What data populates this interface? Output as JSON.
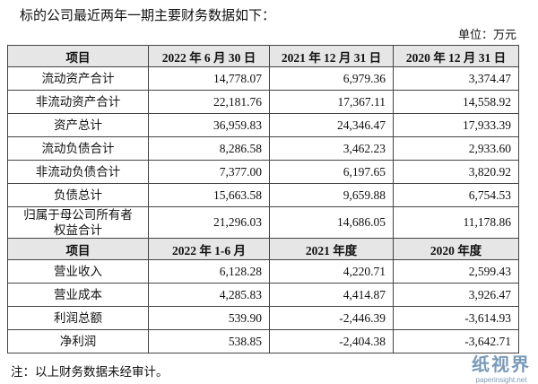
{
  "intro": "标的公司最近两年一期主要财务数据如下：",
  "unit": "单位：万元",
  "balance_sheet": {
    "header": [
      "项目",
      "2022 年 6 月 30 日",
      "2021 年 12 月 31 日",
      "2020 年 12 月 31 日"
    ],
    "rows": [
      [
        "流动资产合计",
        "14,778.07",
        "6,979.36",
        "3,374.47"
      ],
      [
        "非流动资产合计",
        "22,181.76",
        "17,367.11",
        "14,558.92"
      ],
      [
        "资产总计",
        "36,959.83",
        "24,346.47",
        "17,933.39"
      ],
      [
        "流动负债合计",
        "8,286.58",
        "3,462.23",
        "2,933.60"
      ],
      [
        "非流动负债合计",
        "7,377.00",
        "6,197.65",
        "3,820.92"
      ],
      [
        "负债总计",
        "15,663.58",
        "9,659.88",
        "6,754.53"
      ],
      [
        "归属于母公司所有者权益合计",
        "21,296.03",
        "14,686.05",
        "11,178.86"
      ]
    ]
  },
  "income_statement": {
    "header": [
      "项目",
      "2022 年 1-6 月",
      "2021 年度",
      "2020 年度"
    ],
    "rows": [
      [
        "营业收入",
        "6,128.28",
        "4,220.71",
        "2,599.43"
      ],
      [
        "营业成本",
        "4,285.83",
        "4,414.87",
        "3,926.47"
      ],
      [
        "利润总额",
        "539.90",
        "-2,446.39",
        "-3,614.93"
      ],
      [
        "净利润",
        "538.85",
        "-2,404.38",
        "-3,642.71"
      ]
    ]
  },
  "note": "注：以上财务数据未经审计。",
  "watermark": {
    "name": "纸视界",
    "url": "paperinsight.net"
  }
}
